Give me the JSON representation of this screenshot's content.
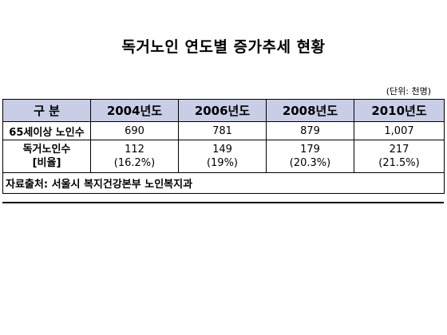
{
  "title": "독거노인 연도별 증가추세 현황",
  "unit_note": "(단위: 천명)",
  "table": {
    "header_color": "#c9cde6",
    "columns": [
      "구 분",
      "2004년도",
      "2006년도",
      "2008년도",
      "2010년도"
    ],
    "rows": [
      {
        "label": "65세이상 노인수",
        "values": [
          "690",
          "781",
          "879",
          "1,007"
        ]
      },
      {
        "label_line1": "독거노인수",
        "label_line2": "[비율]",
        "values": [
          "112",
          "149",
          "179",
          "217"
        ],
        "ratios": [
          "(16.2%)",
          "(19%)",
          "(20.3%)",
          "(21.5%)"
        ]
      }
    ],
    "source": "자료출처: 서울시 복지건강본부 노인복지과"
  }
}
